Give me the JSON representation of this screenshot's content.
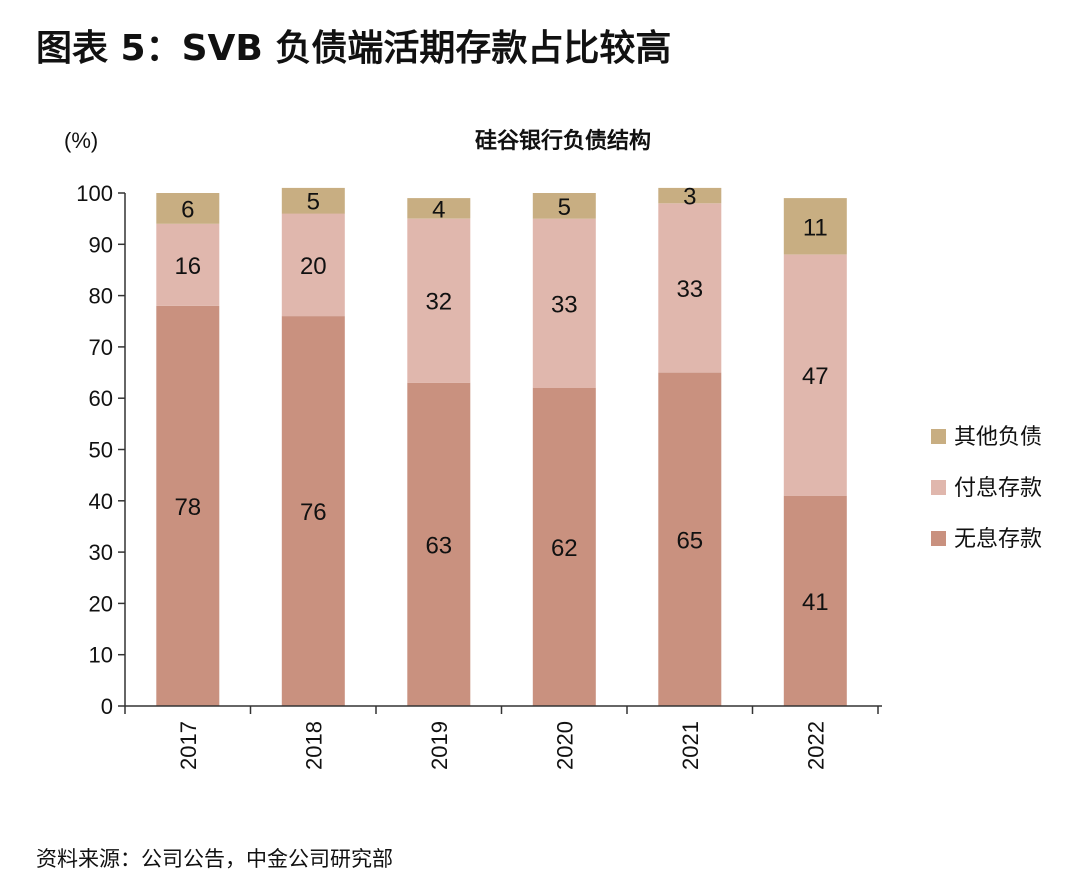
{
  "figure": {
    "title": "图表 5：SVB 负债端活期存款占比较高",
    "source": "资料来源：公司公告，中金公司研究部"
  },
  "chart_data": {
    "type": "bar",
    "stacked": true,
    "title": "硅谷银行负债结构",
    "unit_label": "(%)",
    "xlabel": "",
    "ylabel": "",
    "ylim": [
      0,
      100
    ],
    "yticks": [
      0,
      10,
      20,
      30,
      40,
      50,
      60,
      70,
      80,
      90,
      100
    ],
    "grid": false,
    "legend_position": "right",
    "categories": [
      "2017",
      "2018",
      "2019",
      "2020",
      "2021",
      "2022"
    ],
    "series": [
      {
        "name": "无息存款",
        "color": "#c9917f",
        "values": [
          78,
          76,
          63,
          62,
          65,
          41
        ]
      },
      {
        "name": "付息存款",
        "color": "#e0b7ad",
        "values": [
          16,
          20,
          32,
          33,
          33,
          47
        ]
      },
      {
        "name": "其他负债",
        "color": "#c8ae82",
        "values": [
          6,
          5,
          4,
          5,
          3,
          11
        ]
      }
    ],
    "legend_order": [
      "其他负债",
      "付息存款",
      "无息存款"
    ]
  }
}
